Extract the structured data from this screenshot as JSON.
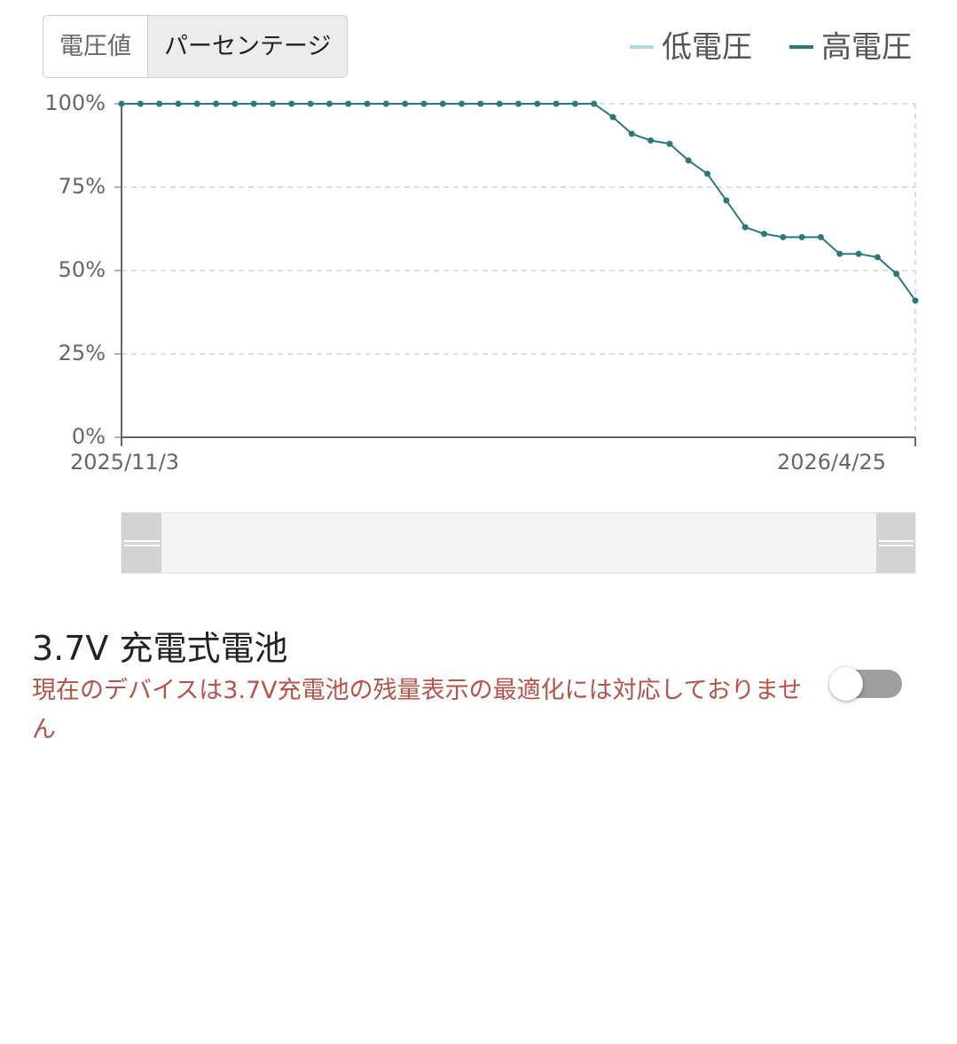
{
  "tabs": [
    "電圧値",
    "パーセンテージ"
  ],
  "chart_data": {
    "type": "line",
    "categories": [
      "2025/11/3",
      null,
      null,
      null,
      null,
      null,
      null,
      null,
      null,
      null,
      null,
      null,
      null,
      null,
      null,
      null,
      null,
      null,
      null,
      null,
      null,
      null,
      null,
      null,
      null,
      null,
      null,
      null,
      null,
      null,
      null,
      null,
      null,
      null,
      null,
      null,
      null,
      null,
      null,
      null,
      null,
      null,
      "2026/4/25"
    ],
    "series": [
      {
        "name": "低電圧",
        "color": "#a8dde3",
        "values": [
          null,
          null,
          null,
          null,
          null,
          null,
          null,
          null,
          null,
          null,
          null,
          null,
          null,
          null,
          null,
          null,
          null,
          null,
          null,
          null,
          null,
          null,
          null,
          null,
          null,
          null,
          null,
          null,
          null,
          null,
          null,
          null,
          null,
          null,
          null,
          null,
          null,
          null,
          null,
          null,
          null,
          null,
          null
        ]
      },
      {
        "name": "高電圧",
        "color": "#2a7a76",
        "values": [
          100,
          100,
          100,
          100,
          100,
          100,
          100,
          100,
          100,
          100,
          100,
          100,
          100,
          100,
          100,
          100,
          100,
          100,
          100,
          100,
          100,
          100,
          100,
          100,
          100,
          100,
          96,
          91,
          89,
          88,
          83,
          79,
          71,
          63,
          61,
          60,
          60,
          60,
          55,
          55,
          54,
          49,
          41
        ]
      }
    ],
    "ylim": [
      0,
      100
    ],
    "yticks": [
      {
        "value": 0,
        "label": "0%"
      },
      {
        "value": 25,
        "label": "25%"
      },
      {
        "value": 50,
        "label": "50%"
      },
      {
        "value": 75,
        "label": "75%"
      },
      {
        "value": 100,
        "label": "100%"
      }
    ],
    "grid": true,
    "legend": "top-right"
  },
  "setting": {
    "title": "3.7V 充電式電池",
    "description": "現在のデバイスは3.7V充電池の残量表示の最適化には対応しておりません"
  }
}
